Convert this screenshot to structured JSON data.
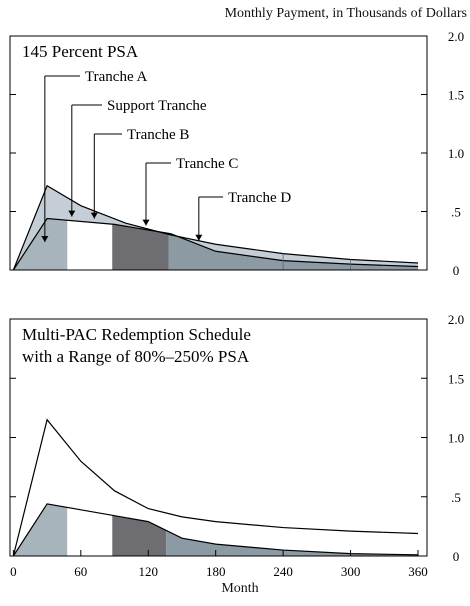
{
  "figure": {
    "right_axis_title": "Monthly Payment, in Thousands of Dollars",
    "x_axis_title": "Month"
  },
  "colors": {
    "outer_fill": "#c5ced6",
    "tranche_a": "#a7b4bc",
    "support": "#ffffff",
    "tranche_b": "#6e6e72",
    "tranche_c_d": "#8c9aa3",
    "line": "#000000"
  },
  "chart_data": [
    {
      "type": "area",
      "title": "145 Percent PSA",
      "xlim": [
        -3,
        368
      ],
      "ylim": [
        0,
        2.0
      ],
      "yticks": [
        0,
        0.5,
        1.0,
        1.5,
        2.0
      ],
      "ytick_labels": [
        "0",
        ".5",
        "1.0",
        "1.5",
        "2.0"
      ],
      "series": [
        {
          "name": "",
          "x": [
            0,
            30,
            60,
            100,
            140,
            180,
            240,
            300,
            360
          ],
          "values": [
            0,
            0.72,
            0.55,
            0.4,
            0.3,
            0.22,
            0.14,
            0.09,
            0.06
          ]
        },
        {
          "name": "",
          "x": [
            0,
            30,
            90,
            140,
            180,
            240,
            300,
            360
          ],
          "values": [
            0,
            0.44,
            0.39,
            0.31,
            0.16,
            0.08,
            0.05,
            0.03
          ]
        }
      ],
      "bands": [
        {
          "name": "Tranche A",
          "x_range": [
            0,
            48
          ],
          "color_key": "tranche_a"
        },
        {
          "name": "Support Tranche",
          "x_range": [
            48,
            88
          ],
          "color_key": "support"
        },
        {
          "name": "Tranche B",
          "x_range": [
            88,
            138
          ],
          "color_key": "tranche_b"
        },
        {
          "name": "Tranche C",
          "x_range": [
            138,
            360
          ],
          "color_key": "tranche_c_d"
        }
      ],
      "annotations": [
        {
          "text": "Tranche A",
          "points_to_x": 28
        },
        {
          "text": "Support Tranche",
          "points_to_x": 52
        },
        {
          "text": "Tranche B",
          "points_to_x": 72
        },
        {
          "text": "Tranche C",
          "points_to_x": 118
        },
        {
          "text": "Tranche D",
          "points_to_x": 165
        }
      ]
    },
    {
      "type": "area",
      "title": "Multi-PAC Redemption Schedule\nwith a Range of 80%–250% PSA",
      "xlim": [
        -3,
        368
      ],
      "ylim": [
        0,
        2.0
      ],
      "yticks": [
        0,
        0.5,
        1.0,
        1.5,
        2.0
      ],
      "ytick_labels": [
        "0",
        ".5",
        "1.0",
        "1.5",
        "2.0"
      ],
      "xticks": [
        0,
        60,
        120,
        180,
        240,
        300,
        360
      ],
      "xlabel": "Month",
      "series": [
        {
          "name": "",
          "x": [
            0,
            30,
            60,
            90,
            120,
            150,
            180,
            240,
            300,
            360
          ],
          "values": [
            0,
            1.15,
            0.8,
            0.55,
            0.4,
            0.33,
            0.29,
            0.24,
            0.21,
            0.19
          ]
        },
        {
          "name": "",
          "x": [
            0,
            30,
            60,
            90,
            120,
            150,
            180,
            240,
            300,
            360
          ],
          "values": [
            0,
            0.44,
            0.39,
            0.34,
            0.29,
            0.15,
            0.1,
            0.05,
            0.02,
            0.01
          ]
        }
      ],
      "bands": [
        {
          "name": "Tranche A",
          "x_range": [
            0,
            48
          ],
          "color_key": "tranche_a"
        },
        {
          "name": "Support Tranche",
          "x_range": [
            48,
            88
          ],
          "color_key": "support"
        },
        {
          "name": "Tranche B",
          "x_range": [
            88,
            136
          ],
          "color_key": "tranche_b"
        },
        {
          "name": "Tranche C",
          "x_range": [
            136,
            360
          ],
          "color_key": "tranche_c_d"
        }
      ]
    }
  ]
}
